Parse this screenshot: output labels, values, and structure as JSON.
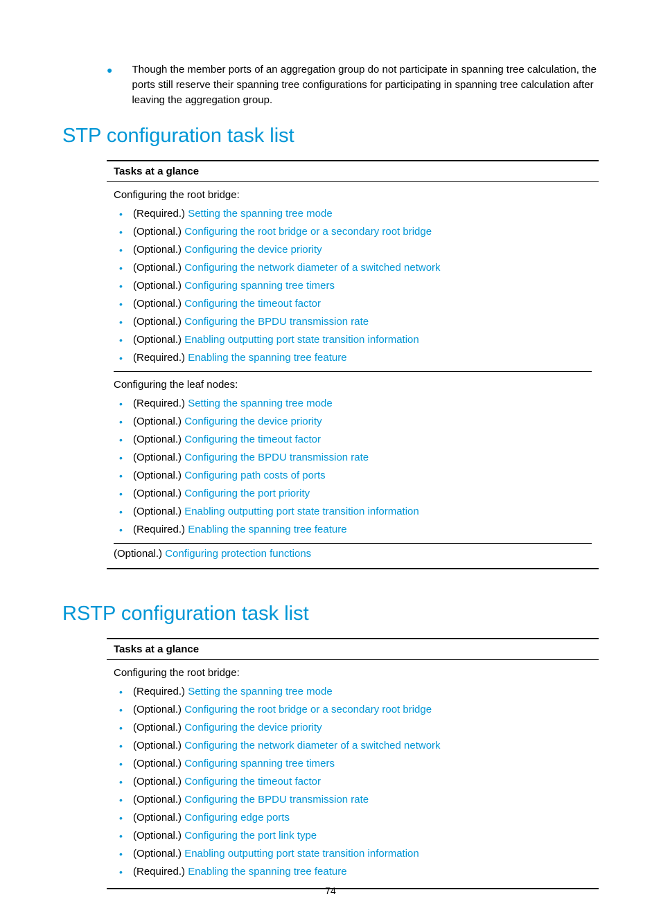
{
  "colors": {
    "accent": "#0096d6",
    "text": "#000000",
    "background": "#ffffff",
    "rule": "#000000"
  },
  "page_number": "74",
  "intro_bullet": "Though the member ports of an aggregation group do not participate in spanning tree calculation, the ports still reserve their spanning tree configurations for participating in spanning tree calculation after leaving the aggregation group.",
  "sections": [
    {
      "heading": "STP configuration task list",
      "table": {
        "header": "Tasks at a glance",
        "groups": [
          {
            "title": "Configuring the root bridge:",
            "items": [
              {
                "prefix": "(Required.) ",
                "link": "Setting the spanning tree mode"
              },
              {
                "prefix": "(Optional.) ",
                "link": "Configuring the root bridge or a secondary root bridge"
              },
              {
                "prefix": "(Optional.) ",
                "link": "Configuring the device priority"
              },
              {
                "prefix": "(Optional.) ",
                "link": "Configuring the network diameter of a switched network"
              },
              {
                "prefix": "(Optional.) ",
                "link": "Configuring spanning tree timers"
              },
              {
                "prefix": "(Optional.) ",
                "link": "Configuring the timeout factor"
              },
              {
                "prefix": "(Optional.) ",
                "link": "Configuring the BPDU transmission rate"
              },
              {
                "prefix": "(Optional.) ",
                "link": "Enabling outputting port state transition information"
              },
              {
                "prefix": "(Required.) ",
                "link": "Enabling the spanning tree feature"
              }
            ]
          },
          {
            "title": "Configuring the leaf nodes:",
            "items": [
              {
                "prefix": "(Required.) ",
                "link": "Setting the spanning tree mode"
              },
              {
                "prefix": "(Optional.) ",
                "link": "Configuring the device priority"
              },
              {
                "prefix": "(Optional.) ",
                "link": "Configuring the timeout factor"
              },
              {
                "prefix": "(Optional.) ",
                "link": "Configuring the BPDU transmission rate"
              },
              {
                "prefix": "(Optional.) ",
                "link": "Configuring path costs of ports"
              },
              {
                "prefix": "(Optional.) ",
                "link": "Configuring the port priority"
              },
              {
                "prefix": "(Optional.) ",
                "link": "Enabling outputting port state transition information"
              },
              {
                "prefix": "(Required.) ",
                "link": "Enabling the spanning tree feature"
              }
            ]
          }
        ],
        "trailing": {
          "prefix": "(Optional.) ",
          "link": "Configuring protection functions"
        }
      }
    },
    {
      "heading": "RSTP configuration task list",
      "table": {
        "header": "Tasks at a glance",
        "groups": [
          {
            "title": "Configuring the root bridge:",
            "items": [
              {
                "prefix": "(Required.) ",
                "link": "Setting the spanning tree mode"
              },
              {
                "prefix": "(Optional.) ",
                "link": "Configuring the root bridge or a secondary root bridge"
              },
              {
                "prefix": "(Optional.) ",
                "link": "Configuring the device priority"
              },
              {
                "prefix": "(Optional.) ",
                "link": "Configuring the network diameter of a switched network"
              },
              {
                "prefix": "(Optional.) ",
                "link": "Configuring spanning tree timers"
              },
              {
                "prefix": "(Optional.) ",
                "link": "Configuring the timeout factor"
              },
              {
                "prefix": "(Optional.) ",
                "link": "Configuring the BPDU transmission rate"
              },
              {
                "prefix": "(Optional.) ",
                "link": "Configuring edge ports"
              },
              {
                "prefix": "(Optional.) ",
                "link": "Configuring the port link type"
              },
              {
                "prefix": "(Optional.) ",
                "link": "Enabling outputting port state transition information"
              },
              {
                "prefix": "(Required.) ",
                "link": "Enabling the spanning tree feature"
              }
            ]
          }
        ]
      }
    }
  ]
}
